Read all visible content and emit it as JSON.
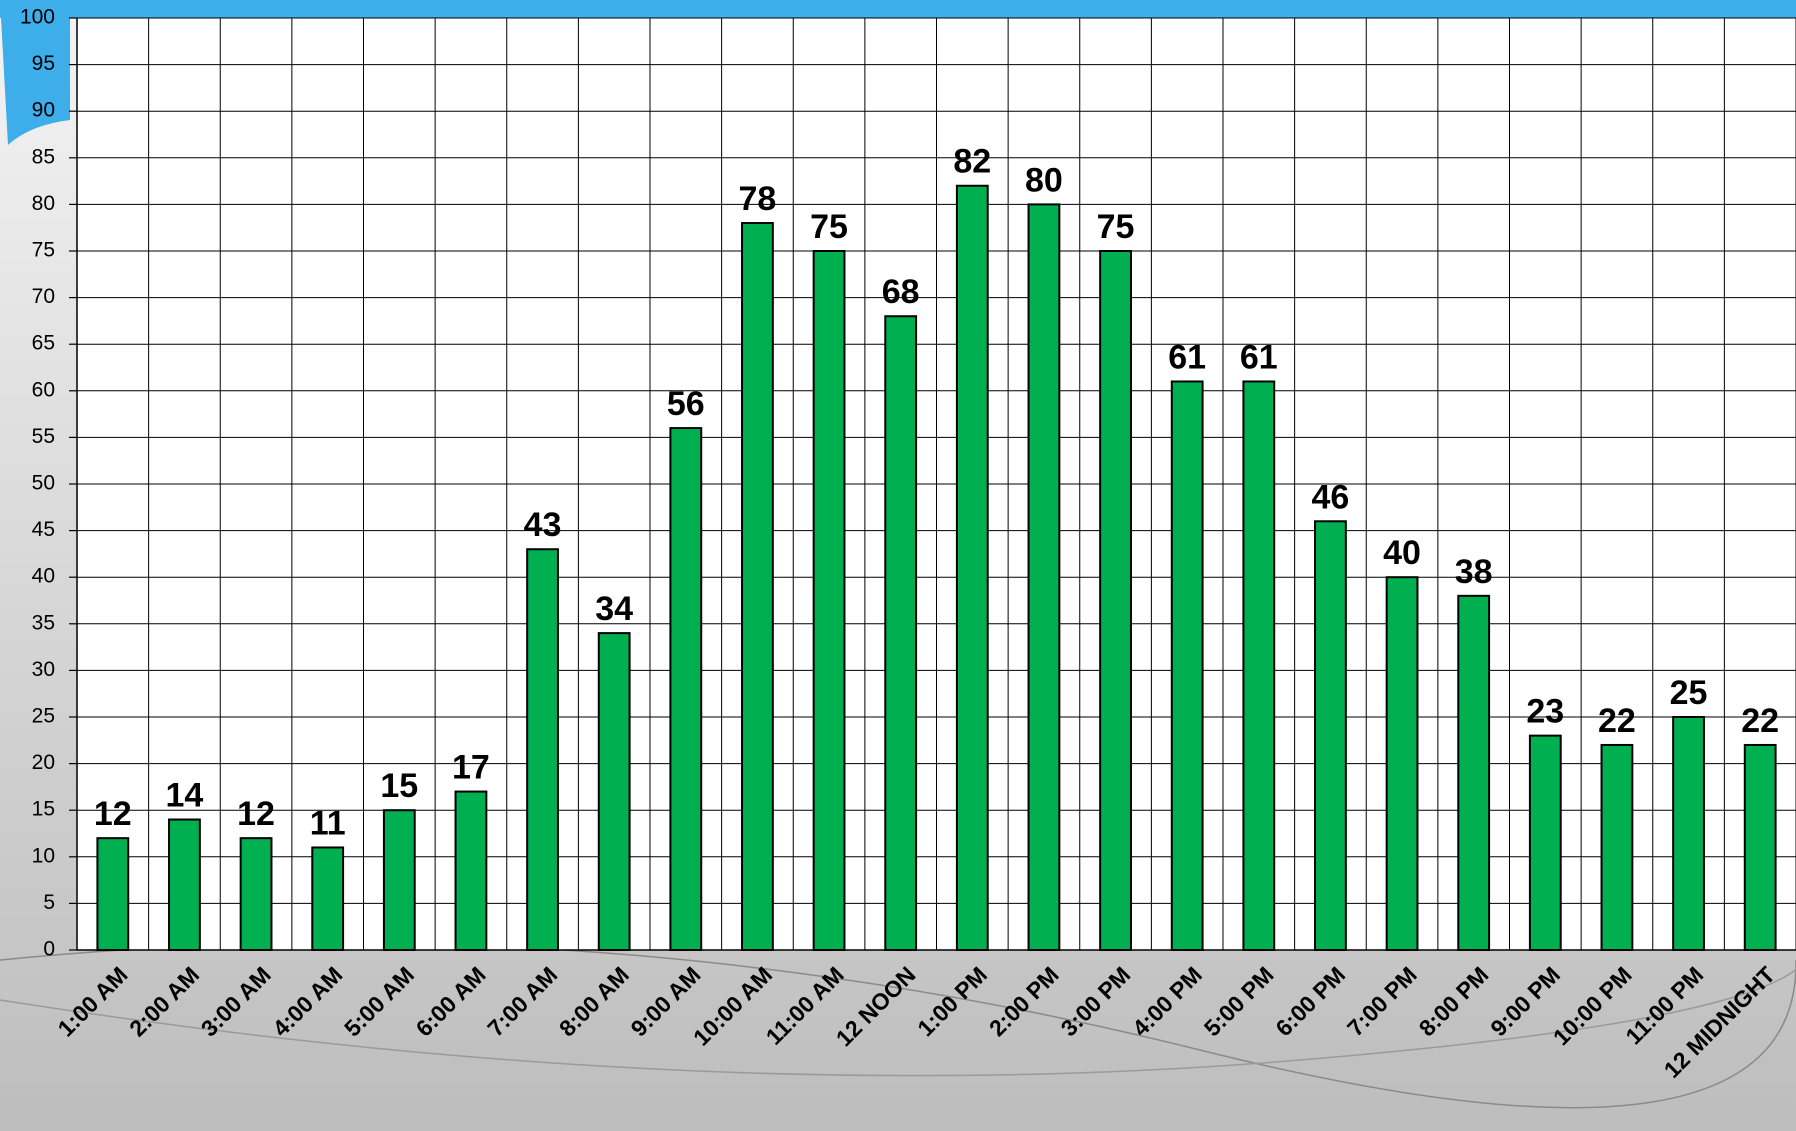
{
  "chart_data": {
    "type": "bar",
    "categories": [
      "1:00 AM",
      "2:00 AM",
      "3:00 AM",
      "4:00 AM",
      "5:00 AM",
      "6:00 AM",
      "7:00 AM",
      "8:00 AM",
      "9:00 AM",
      "10:00 AM",
      "11:00 AM",
      "12 NOON",
      "1:00 PM",
      "2:00 PM",
      "3:00 PM",
      "4:00 PM",
      "5:00 PM",
      "6:00 PM",
      "7:00 PM",
      "8:00 PM",
      "9:00 PM",
      "10:00 PM",
      "11:00 PM",
      "12 MIDNIGHT"
    ],
    "values": [
      12,
      14,
      12,
      11,
      15,
      17,
      43,
      34,
      56,
      78,
      75,
      68,
      82,
      80,
      75,
      61,
      61,
      46,
      40,
      38,
      23,
      22,
      25,
      22
    ],
    "color": "#00b050",
    "ylim": [
      0,
      100
    ],
    "yticks": [
      0,
      5,
      10,
      15,
      20,
      25,
      30,
      35,
      40,
      45,
      50,
      55,
      60,
      65,
      70,
      75,
      80,
      85,
      90,
      95,
      100
    ],
    "grid": true
  }
}
